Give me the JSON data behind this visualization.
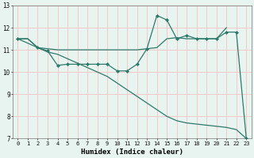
{
  "bg_color": "#e8f4f0",
  "grid_color": "#f5c8c8",
  "line_color": "#2d7a6b",
  "xlabel": "Humidex (Indice chaleur)",
  "xlim": [
    -0.5,
    23.5
  ],
  "ylim": [
    7,
    13
  ],
  "xticks": [
    0,
    1,
    2,
    3,
    4,
    5,
    6,
    7,
    8,
    9,
    10,
    11,
    12,
    13,
    14,
    15,
    16,
    17,
    18,
    19,
    20,
    21,
    22,
    23
  ],
  "yticks": [
    7,
    8,
    9,
    10,
    11,
    12,
    13
  ],
  "line1_x": [
    0,
    1,
    2,
    3,
    4,
    5,
    6,
    7,
    8,
    9,
    10,
    11,
    12,
    13,
    14,
    15,
    16,
    17,
    18,
    19,
    20,
    21
  ],
  "line1_y": [
    11.5,
    11.5,
    11.1,
    11.05,
    11.0,
    11.0,
    11.0,
    11.0,
    11.0,
    11.0,
    11.0,
    11.0,
    11.0,
    11.05,
    11.1,
    11.5,
    11.55,
    11.5,
    11.5,
    11.5,
    11.5,
    12.0
  ],
  "line2_x": [
    0,
    2,
    3,
    4,
    5,
    6,
    7,
    8,
    9,
    10,
    11,
    12,
    13,
    14,
    15,
    16,
    17,
    18,
    19,
    20,
    21,
    22,
    23
  ],
  "line2_y": [
    11.5,
    11.1,
    10.95,
    10.3,
    10.35,
    10.35,
    10.35,
    10.35,
    10.35,
    10.05,
    10.05,
    10.35,
    11.05,
    12.55,
    12.35,
    11.5,
    11.65,
    11.5,
    11.5,
    11.5,
    11.8,
    11.8,
    7.0
  ],
  "line3_x": [
    0,
    1,
    2,
    3,
    4,
    5,
    6,
    7,
    8,
    9,
    10,
    11,
    12,
    13,
    14,
    15,
    16,
    17,
    18,
    19,
    20,
    21,
    22,
    23
  ],
  "line3_y": [
    11.5,
    11.5,
    11.1,
    10.9,
    10.8,
    10.6,
    10.4,
    10.2,
    10.0,
    9.8,
    9.5,
    9.2,
    8.9,
    8.6,
    8.3,
    8.0,
    7.8,
    7.7,
    7.65,
    7.6,
    7.55,
    7.5,
    7.4,
    7.0
  ]
}
